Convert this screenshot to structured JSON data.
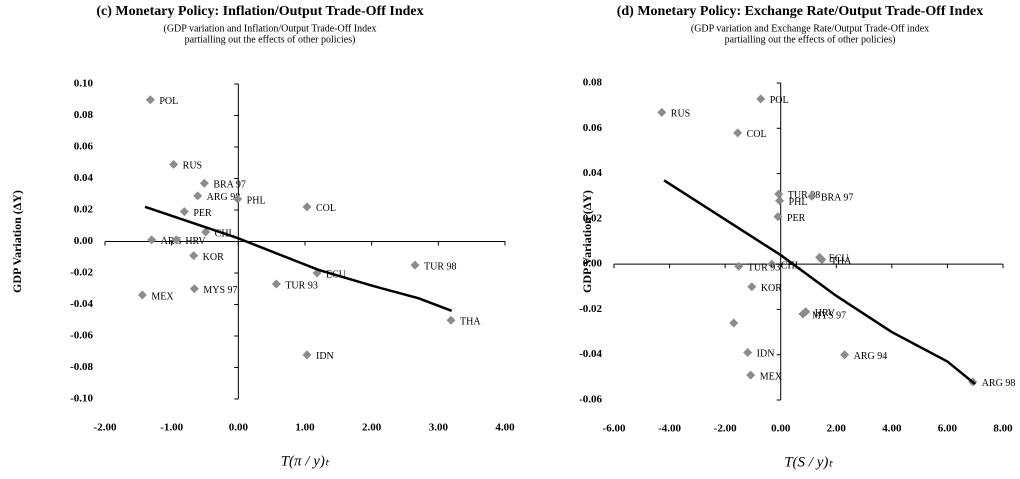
{
  "chart_data": [
    {
      "type": "scatter",
      "title": "(c) Monetary Policy: Inflation/Output Trade-Off Index",
      "subtitle": [
        "(GDP variation and Inflation/Output Trade-Off Index",
        "partialling out the effects of other policies)"
      ],
      "y_label": "GDP Variation (ΔY)",
      "x_label": "T(π / y)ₜ",
      "xlim": [
        -2,
        4
      ],
      "ylim": [
        -0.1,
        0.1
      ],
      "xticks": [
        {
          "value": -2,
          "label": "-2.00"
        },
        {
          "value": -1,
          "label": "-1.00"
        },
        {
          "value": 0,
          "label": "0.00"
        },
        {
          "value": 1,
          "label": "1.00"
        },
        {
          "value": 2,
          "label": "2.00"
        },
        {
          "value": 3,
          "label": "3.00"
        },
        {
          "value": 4,
          "label": "4.00"
        }
      ],
      "yticks": [
        {
          "value": 0.1,
          "label": "0.10"
        },
        {
          "value": 0.08,
          "label": "0.08"
        },
        {
          "value": 0.06,
          "label": "0.06"
        },
        {
          "value": 0.04,
          "label": "0.04"
        },
        {
          "value": 0.02,
          "label": "0.02"
        },
        {
          "value": 0,
          "label": "0.00"
        },
        {
          "value": -0.02,
          "label": "-0.02"
        },
        {
          "value": -0.04,
          "label": "-0.04"
        },
        {
          "value": -0.06,
          "label": "-0.06"
        },
        {
          "value": -0.08,
          "label": "-0.08"
        },
        {
          "value": -0.1,
          "label": "-0.10"
        }
      ],
      "color": "#8c8c8c",
      "point_labels": [
        "POL",
        "RUS",
        "BRA 97",
        "ARG 98",
        "PER",
        "PHL",
        "CHL",
        "ARG",
        "HRV",
        "KOR",
        "MYS 97",
        "MEX",
        "COL",
        "ECU",
        "TUR 93",
        "TUR 98",
        "THA",
        "IDN"
      ],
      "x": [
        -1.32,
        -0.97,
        -0.51,
        -0.61,
        -0.81,
        -0.01,
        -0.49,
        -1.3,
        -0.93,
        -0.67,
        -0.66,
        -1.44,
        1.03,
        1.18,
        0.57,
        2.65,
        3.19,
        1.03
      ],
      "y": [
        0.09,
        0.049,
        0.037,
        0.029,
        0.019,
        0.027,
        0.006,
        0.001,
        0.001,
        -0.009,
        -0.03,
        -0.034,
        0.022,
        -0.02,
        -0.027,
        -0.015,
        -0.05,
        -0.072
      ],
      "fit_line": {
        "color": "#000000",
        "x": [
          -1.4,
          0,
          1.2,
          2.0,
          2.7,
          3.2
        ],
        "y": [
          0.022,
          0.002,
          -0.018,
          -0.028,
          -0.036,
          -0.044
        ]
      }
    },
    {
      "type": "scatter",
      "title": "(d) Monetary Policy: Exchange Rate/Output Trade-Off Index",
      "subtitle": [
        "(GDP variation and Exchange Rate/Output Trade-Off index",
        "partialling out the effects of other policies)"
      ],
      "y_label": "GDP Variation (ΔY)",
      "x_label": "T(S / y)ₜ",
      "xlim": [
        -6,
        8
      ],
      "ylim": [
        -0.06,
        0.08
      ],
      "xticks": [
        {
          "value": -6,
          "label": "-6.00"
        },
        {
          "value": -4,
          "label": "-4.00"
        },
        {
          "value": -2,
          "label": "-2.00"
        },
        {
          "value": 0,
          "label": "0.00"
        },
        {
          "value": 2,
          "label": "2.00"
        },
        {
          "value": 4,
          "label": "4.00"
        },
        {
          "value": 6,
          "label": "6.00"
        },
        {
          "value": 8,
          "label": "8.00"
        }
      ],
      "yticks": [
        {
          "value": 0.08,
          "label": "0.08"
        },
        {
          "value": 0.06,
          "label": "0.06"
        },
        {
          "value": 0.04,
          "label": "0.04"
        },
        {
          "value": 0.02,
          "label": "0.02"
        },
        {
          "value": 0,
          "label": "0.00"
        },
        {
          "value": -0.02,
          "label": "-0.02"
        },
        {
          "value": -0.04,
          "label": "-0.04"
        },
        {
          "value": -0.06,
          "label": "-0.06"
        }
      ],
      "color": "#8c8c8c",
      "point_labels": [
        "RUS",
        "POL",
        "COL",
        "TUR 98",
        "PHL",
        "BRA 97",
        "PER",
        "ECU",
        "THA",
        "CHL",
        "TUR 93",
        "KOR",
        null,
        "HRV",
        "MYS 97",
        "IDN",
        "MEX",
        "ARG 94",
        "ARG 98"
      ],
      "x": [
        -4.28,
        -0.72,
        -1.55,
        -0.07,
        -0.04,
        1.12,
        -0.1,
        1.4,
        1.48,
        -0.32,
        -1.51,
        -1.04,
        -1.69,
        0.9,
        0.8,
        -1.19,
        -1.08,
        2.3,
        6.91
      ],
      "y": [
        0.067,
        0.073,
        0.058,
        0.031,
        0.028,
        0.03,
        0.021,
        0.003,
        0.002,
        0.0,
        -0.001,
        -0.01,
        -0.026,
        -0.021,
        -0.022,
        -0.039,
        -0.049,
        -0.04,
        -0.052
      ],
      "fit_line": {
        "color": "#000000",
        "x": [
          -4.2,
          0,
          2,
          4,
          6,
          7
        ],
        "y": [
          0.037,
          0.004,
          -0.014,
          -0.03,
          -0.043,
          -0.053
        ]
      }
    }
  ]
}
